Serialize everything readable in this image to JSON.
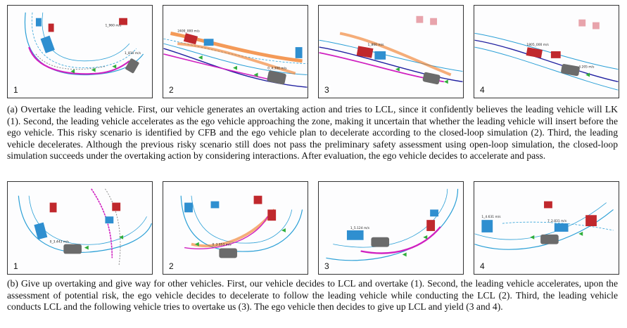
{
  "figure": {
    "row_a": {
      "panels": [
        {
          "number": "1"
        },
        {
          "number": "2"
        },
        {
          "number": "3"
        },
        {
          "number": "4"
        }
      ],
      "caption": "(a) Overtake the leading vehicle. First, our vehicle generates an overtaking action and tries to LCL, since it confidently believes the leading vehicle will LK (1). Second, the leading vehicle accelerates as the ego vehicle approaching the zone, making it uncertain that whether the leading vehicle will insert before the ego vehicle. This risky scenario is identified by CFB and the ego vehicle plan to decelerate according to the closed-loop simulation (2). Third, the leading vehicle decelerates. Although the previous risky scenario still does not pass the preliminary safety assessment using open-loop simulation, the closed-loop simulation succeeds under the overtaking action by considering interactions. After evaluation, the ego vehicle decides to accelerate and pass."
    },
    "row_b": {
      "panels": [
        {
          "number": "1"
        },
        {
          "number": "2"
        },
        {
          "number": "3"
        },
        {
          "number": "4"
        }
      ],
      "caption": "(b) Give up overtaking and give way for other vehicles. First, our vehicle decides to LCL and overtake (1). Second, the leading vehicle accelerates, upon the assessment of potential risk, the ego vehicle decides to decelerate to follow the leading vehicle while conducting the LCL (2). Third, the leading vehicle conducts LCL and the following vehicle tries to overtake us (3). The ego vehicle then decides to give up LCL and yield (3 and 4)."
    },
    "colors": {
      "lane_line": "#2a9fd6",
      "ego_vehicle": "#6b6b6b",
      "leading_vehicle": "#c0282d",
      "other_vehicle": "#2f8fd0",
      "ego_trajectory": "#d020c0",
      "risk_trajectory": "#f07820",
      "arrow": "#2fae3a"
    }
  }
}
